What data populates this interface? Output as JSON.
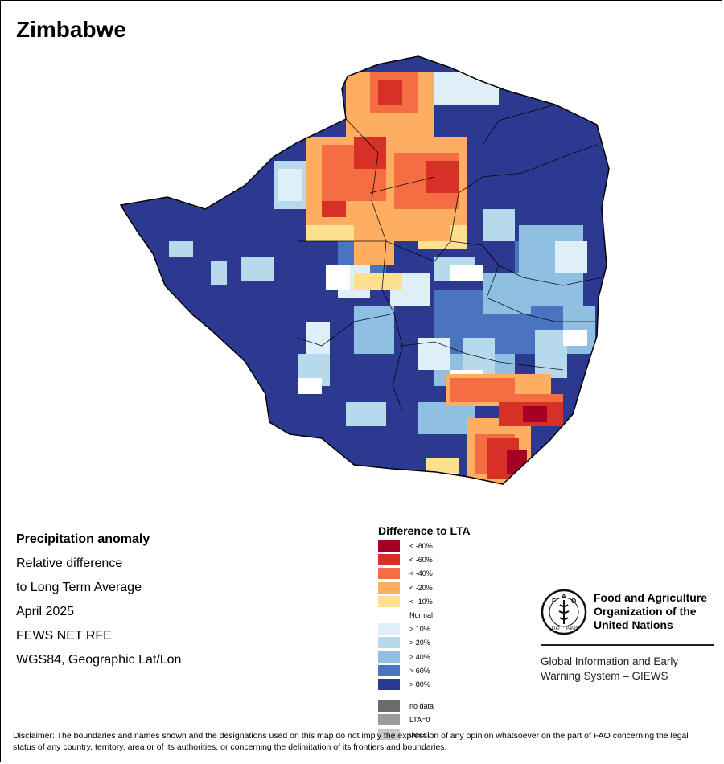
{
  "title": "Zimbabwe",
  "info_lines": [
    "Precipitation anomaly",
    "Relative difference",
    "to Long Term Average",
    "April 2025",
    "FEWS NET RFE",
    "WGS84, Geographic Lat/Lon"
  ],
  "legend": {
    "title": "Difference to LTA",
    "items": [
      {
        "label": "< -80%",
        "color": "#a50026"
      },
      {
        "label": "< -60%",
        "color": "#d73027"
      },
      {
        "label": "< -40%",
        "color": "#f46d43"
      },
      {
        "label": "< -20%",
        "color": "#fdae61"
      },
      {
        "label": "< -10%",
        "color": "#fee090"
      },
      {
        "label": "Normal",
        "color": "#ffffff"
      },
      {
        "label": "> 10%",
        "color": "#deeff7"
      },
      {
        "label": "> 20%",
        "color": "#b7d9ec"
      },
      {
        "label": "> 40%",
        "color": "#8fc0e2"
      },
      {
        "label": "> 60%",
        "color": "#4a74c0"
      },
      {
        "label": "> 80%",
        "color": "#2b3990"
      }
    ],
    "special": [
      {
        "label": "no data",
        "color": "#6b6b6b"
      },
      {
        "label": "LTA=0",
        "color": "#9a9a9a"
      },
      {
        "label": "desert",
        "color": "#c8c8c8"
      }
    ]
  },
  "fao": {
    "logo_text": "FAO",
    "logo_motto": "FIAT PANIS",
    "name": "Food and Agriculture Organization of the United Nations",
    "subtitle": "Global Information and Early Warning System – GIEWS"
  },
  "disclaimer": "Disclaimer: The boundaries and names shown and the designations used on this map do not imply the expression of any opinion whatsoever on the part of FAO concerning the legal status of any country, territory, area or of its authorities, or concerning the delimitation of its frontiers and boundaries."
}
